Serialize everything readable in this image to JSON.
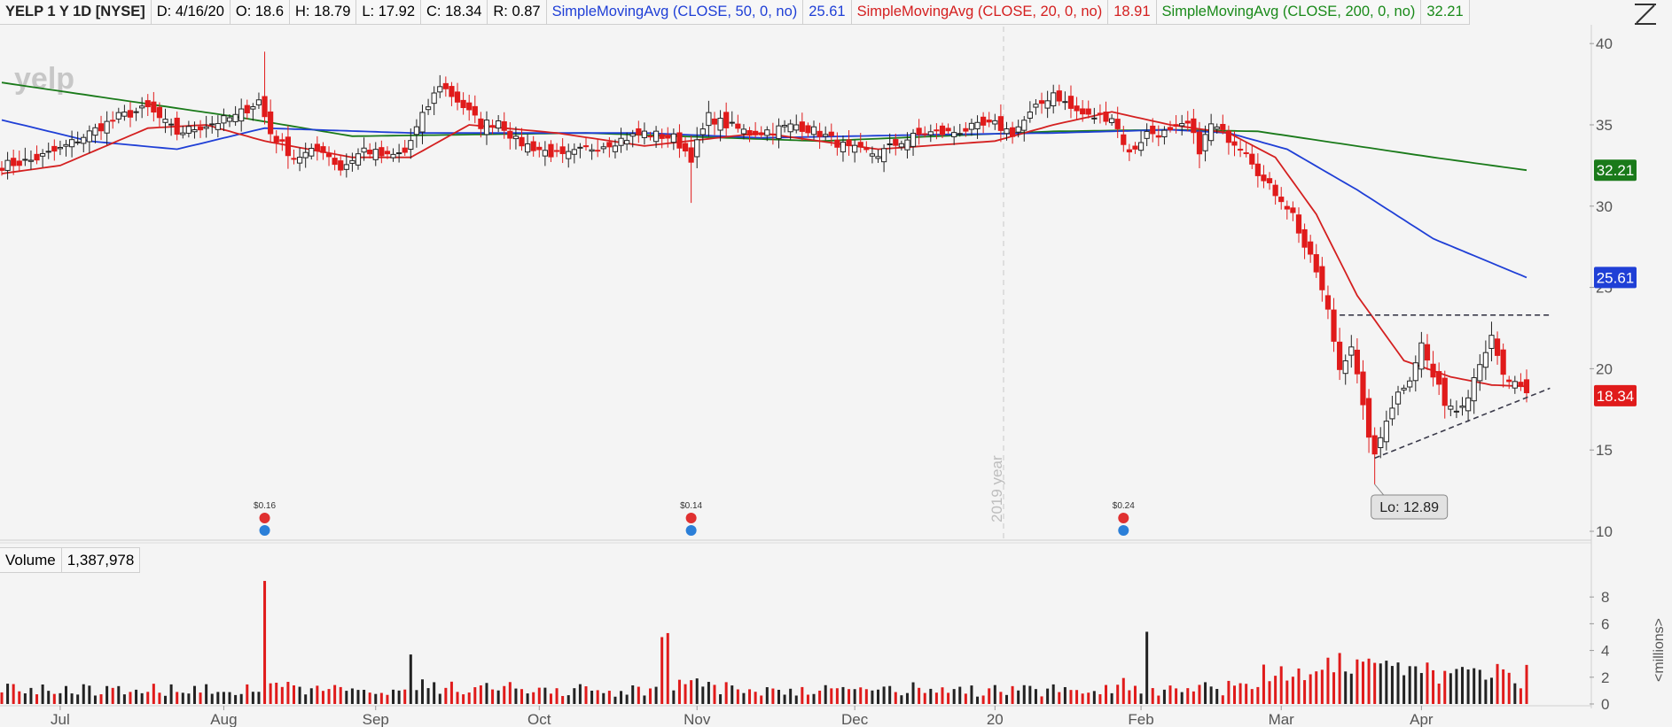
{
  "header": {
    "symbol": "YELP 1 Y 1D [NYSE]",
    "date": "D: 4/16/20",
    "open": "O: 18.6",
    "high": "H: 18.79",
    "low": "L: 17.92",
    "close": "C: 18.34",
    "range": "R: 0.87",
    "sma50_label": "SimpleMovingAvg (CLOSE, 50, 0, no)",
    "sma50_value": "25.61",
    "sma20_label": "SimpleMovingAvg (CLOSE, 20, 0, no)",
    "sma20_value": "18.91",
    "sma200_label": "SimpleMovingAvg (CLOSE, 200, 0, no)",
    "sma200_value": "32.21"
  },
  "volume_header": {
    "label": "Volume",
    "value": "1,387,978"
  },
  "watermark": "yelp",
  "year_marker": "2019 year",
  "low_callout": "Lo: 12.89",
  "price_badges": {
    "sma200": "32.21",
    "sma50": "25.61",
    "last": "18.34"
  },
  "dividends": [
    "$0.16",
    "$0.14",
    "$0.24"
  ],
  "volume_unit_label": "<millions>",
  "colors": {
    "up": "#222222",
    "down": "#e01b1b",
    "sma50": "#1f3fd6",
    "sma20": "#d42020",
    "sma200": "#1a7a1a"
  },
  "chart_data": {
    "type": "candlestick",
    "price_axis": {
      "ticks": [
        10,
        15,
        20,
        25,
        30,
        35,
        40
      ],
      "range": [
        10,
        40.5
      ]
    },
    "volume_axis": {
      "ticks": [
        0,
        2,
        4,
        6,
        8
      ],
      "unit": "millions"
    },
    "x_labels": [
      "Jul",
      "Aug",
      "Sep",
      "Oct",
      "Nov",
      "Dec",
      "20",
      "Feb",
      "Mar",
      "Apr"
    ],
    "x_label_days": [
      10,
      38,
      64,
      92,
      119,
      146,
      170,
      195,
      219,
      243
    ],
    "days_total": 253,
    "close_anchors": [
      [
        0,
        32.5
      ],
      [
        5,
        32.8
      ],
      [
        10,
        33.5
      ],
      [
        15,
        34.5
      ],
      [
        20,
        35.5
      ],
      [
        25,
        36.0
      ],
      [
        30,
        34.5
      ],
      [
        35,
        35.0
      ],
      [
        40,
        35.5
      ],
      [
        44,
        36.5
      ],
      [
        46,
        34.5
      ],
      [
        50,
        33.0
      ],
      [
        55,
        33.5
      ],
      [
        58,
        32.3
      ],
      [
        62,
        33.5
      ],
      [
        66,
        33.0
      ],
      [
        69,
        33.3
      ],
      [
        72,
        35.5
      ],
      [
        75,
        37.5
      ],
      [
        78,
        36.5
      ],
      [
        82,
        35.0
      ],
      [
        85,
        35.3
      ],
      [
        88,
        34.0
      ],
      [
        92,
        33.5
      ],
      [
        96,
        33.0
      ],
      [
        100,
        33.5
      ],
      [
        105,
        34.0
      ],
      [
        110,
        34.5
      ],
      [
        115,
        34.2
      ],
      [
        118,
        33.0
      ],
      [
        121,
        35.5
      ],
      [
        124,
        35.0
      ],
      [
        128,
        34.5
      ],
      [
        132,
        34.7
      ],
      [
        136,
        35.0
      ],
      [
        140,
        34.5
      ],
      [
        145,
        33.5
      ],
      [
        150,
        33.2
      ],
      [
        154,
        34.0
      ],
      [
        158,
        34.5
      ],
      [
        162,
        34.5
      ],
      [
        166,
        34.8
      ],
      [
        170,
        35.0
      ],
      [
        173,
        34.5
      ],
      [
        177,
        36.0
      ],
      [
        180,
        37.0
      ],
      [
        183,
        36.0
      ],
      [
        186,
        35.5
      ],
      [
        190,
        35.5
      ],
      [
        193,
        33.2
      ],
      [
        196,
        34.5
      ],
      [
        200,
        34.5
      ],
      [
        203,
        35.0
      ],
      [
        205,
        33.5
      ],
      [
        207,
        35.0
      ],
      [
        210,
        34.2
      ],
      [
        213,
        33.5
      ],
      [
        216,
        31.5
      ],
      [
        219,
        30.5
      ],
      [
        221,
        29.5
      ],
      [
        223,
        27.5
      ],
      [
        225,
        26.0
      ],
      [
        227,
        23.5
      ],
      [
        229,
        20.0
      ],
      [
        231,
        21.5
      ],
      [
        233,
        17.5
      ],
      [
        235,
        14.5
      ],
      [
        237,
        17.0
      ],
      [
        239,
        18.5
      ],
      [
        241,
        19.5
      ],
      [
        243,
        21.5
      ],
      [
        245,
        19.5
      ],
      [
        247,
        18.0
      ],
      [
        249,
        17.5
      ],
      [
        251,
        18.5
      ],
      [
        253,
        20.5
      ],
      [
        255,
        21.8
      ],
      [
        257,
        19.5
      ],
      [
        259,
        19.0
      ],
      [
        261,
        18.34
      ]
    ],
    "key_bars": [
      {
        "day": 45,
        "high": 39.5,
        "note": "August spike"
      },
      {
        "day": 118,
        "low": 30.2,
        "note": "November drop"
      },
      {
        "day": 235,
        "low": 12.89,
        "note": "Lo: 12.89"
      }
    ],
    "volume_spikes": [
      {
        "day": 45,
        "value": 9.2
      },
      {
        "day": 113,
        "value": 5.0
      },
      {
        "day": 114,
        "value": 5.3
      },
      {
        "day": 70,
        "value": 3.7
      },
      {
        "day": 196,
        "value": 5.4
      }
    ],
    "sma200": {
      "name": "SMA 200",
      "points": [
        [
          0,
          37.6
        ],
        [
          40,
          35.5
        ],
        [
          60,
          34.3
        ],
        [
          100,
          34.5
        ],
        [
          140,
          34.0
        ],
        [
          180,
          34.6
        ],
        [
          200,
          34.7
        ],
        [
          215,
          34.6
        ],
        [
          230,
          33.8
        ],
        [
          245,
          33.0
        ],
        [
          261,
          32.21
        ]
      ]
    },
    "sma50": {
      "name": "SMA 50",
      "points": [
        [
          0,
          35.3
        ],
        [
          15,
          34.0
        ],
        [
          30,
          33.5
        ],
        [
          45,
          34.8
        ],
        [
          70,
          34.5
        ],
        [
          90,
          34.5
        ],
        [
          110,
          34.5
        ],
        [
          130,
          34.2
        ],
        [
          160,
          34.4
        ],
        [
          180,
          34.5
        ],
        [
          200,
          34.7
        ],
        [
          210,
          34.5
        ],
        [
          220,
          33.5
        ],
        [
          232,
          31.0
        ],
        [
          245,
          28.0
        ],
        [
          261,
          25.61
        ]
      ]
    },
    "sma20": {
      "name": "SMA 20",
      "points": [
        [
          0,
          32.0
        ],
        [
          10,
          32.5
        ],
        [
          25,
          34.8
        ],
        [
          35,
          35.0
        ],
        [
          45,
          34.0
        ],
        [
          60,
          33.0
        ],
        [
          70,
          33.0
        ],
        [
          80,
          35.0
        ],
        [
          95,
          34.5
        ],
        [
          110,
          33.7
        ],
        [
          130,
          34.5
        ],
        [
          150,
          33.5
        ],
        [
          170,
          34.0
        ],
        [
          180,
          35.0
        ],
        [
          190,
          35.8
        ],
        [
          200,
          35.0
        ],
        [
          210,
          34.5
        ],
        [
          218,
          33.0
        ],
        [
          225,
          29.5
        ],
        [
          232,
          24.5
        ],
        [
          240,
          20.5
        ],
        [
          248,
          19.5
        ],
        [
          255,
          19.0
        ],
        [
          261,
          18.91
        ]
      ]
    },
    "trendlines": [
      {
        "style": "dashed",
        "from": [
          229,
          23.3
        ],
        "to": [
          265,
          23.3
        ]
      },
      {
        "style": "dashed",
        "from": [
          235,
          14.5
        ],
        "to": [
          265,
          18.8
        ]
      }
    ],
    "dividend_days": [
      45,
      118,
      192
    ]
  }
}
